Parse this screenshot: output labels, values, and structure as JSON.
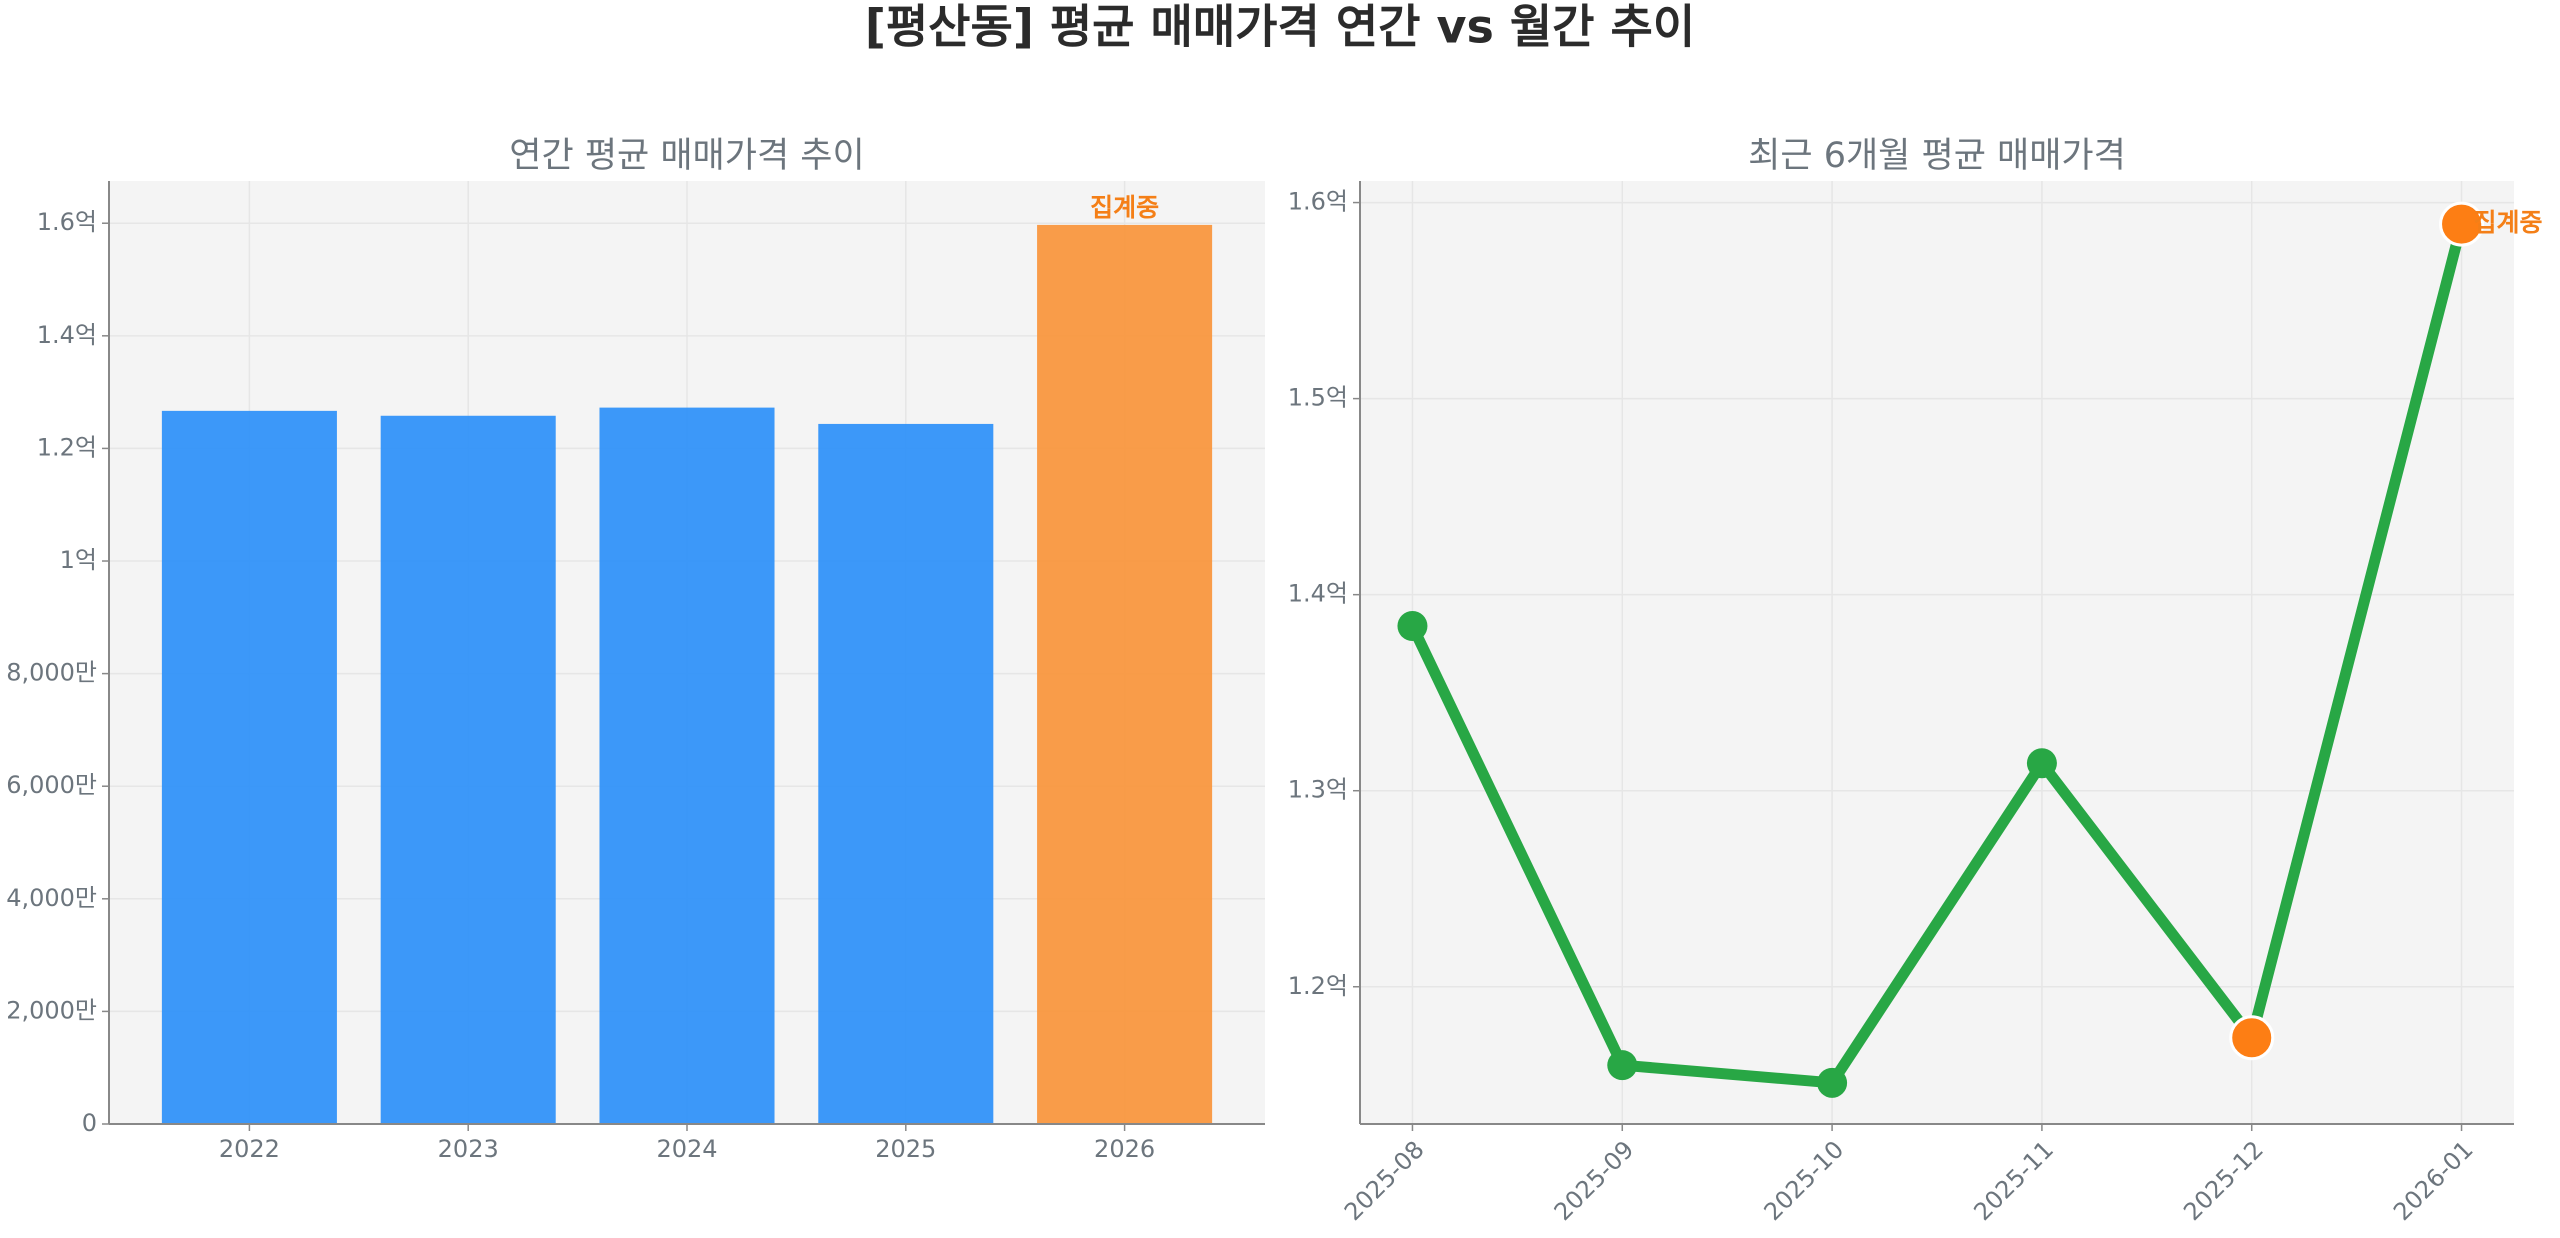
{
  "title": "[평산동] 평균 매매가격 연간 vs 월간 추이",
  "chart_data": [
    {
      "type": "bar",
      "title": "연간 평균 매매가격 추이",
      "categories": [
        "2022",
        "2023",
        "2024",
        "2025",
        "2026"
      ],
      "values": [
        126670000,
        125800000,
        127250000,
        124350000,
        159700000
      ],
      "colors": [
        "#3192f9",
        "#3192f9",
        "#3192f9",
        "#3192f9",
        "#f9973f"
      ],
      "ylim": [
        0,
        167500000
      ],
      "yticks": [
        0,
        {
          "value": 20000000,
          "label": "2,000만"
        },
        {
          "value": 40000000,
          "label": "4,000만"
        },
        {
          "value": 60000000,
          "label": "6,000만"
        },
        {
          "value": 80000000,
          "label": "8,000만"
        },
        {
          "value": 100000000,
          "label": "1억"
        },
        {
          "value": 120000000,
          "label": "1.2억"
        },
        {
          "value": 140000000,
          "label": "1.4억"
        },
        {
          "value": 160000000,
          "label": "1.6억"
        }
      ],
      "grid": true,
      "annotations": [
        {
          "text": "집계중",
          "category": "2026",
          "color": "#f47f17"
        }
      ]
    },
    {
      "type": "line",
      "title": "최근 6개월 평균 매매가격",
      "categories": [
        "2025-08",
        "2025-09",
        "2025-10",
        "2025-11",
        "2025-12",
        "2026-01"
      ],
      "values": [
        138400000,
        116000000,
        115100000,
        131400000,
        117400000,
        158900000
      ],
      "color": "#28a745",
      "marker_colors": [
        "#28a745",
        "#28a745",
        "#28a745",
        "#28a745",
        "#fd7e14",
        "#fd7e14"
      ],
      "ylim": [
        113000000,
        161100000
      ],
      "yticks": [
        {
          "value": 120000000,
          "label": "1.2억"
        },
        {
          "value": 130000000,
          "label": "1.3억"
        },
        {
          "value": 140000000,
          "label": "1.4억"
        },
        {
          "value": 150000000,
          "label": "1.5억"
        },
        {
          "value": 160000000,
          "label": "1.6억"
        }
      ],
      "grid": true,
      "annotations": [
        {
          "text": "집계중",
          "category": "2026-01",
          "color": "#f47f17"
        }
      ]
    }
  ]
}
